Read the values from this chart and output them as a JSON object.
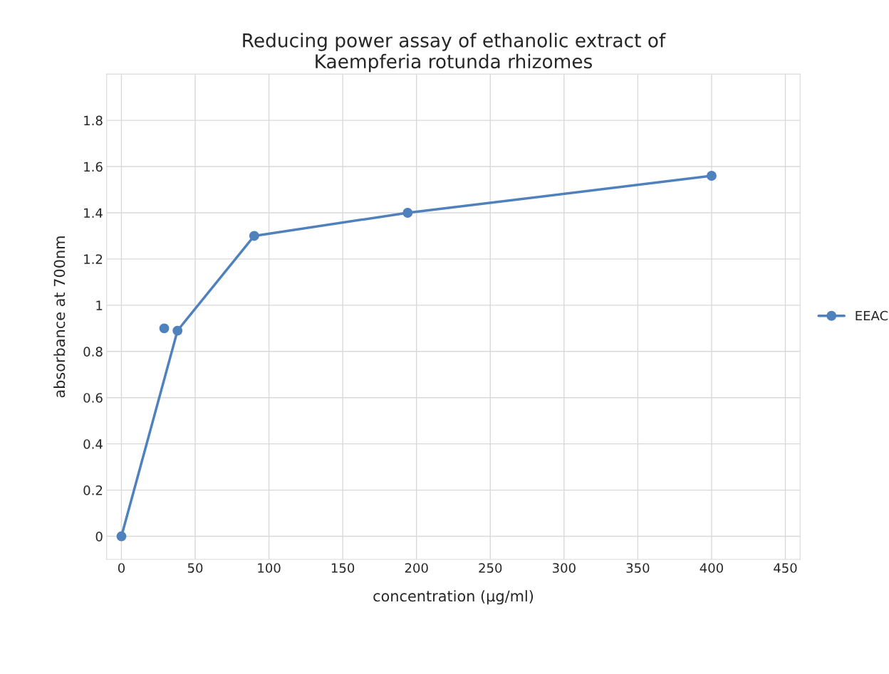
{
  "chart_data": {
    "type": "line",
    "title": "Reducing power assay of ethanolic extract of\nKaempferia rotunda rhizomes",
    "xlabel": "concentration (µg/ml)",
    "ylabel": "absorbance at 700nm",
    "series": [
      {
        "name": "EEAC",
        "color": "#4f81bd",
        "x": [
          0,
          38,
          90,
          194,
          400
        ],
        "values": [
          0,
          0.89,
          1.3,
          1.4,
          1.56
        ]
      },
      {
        "type": "scatter",
        "color": "#4f81bd",
        "x": [
          29
        ],
        "values": [
          0.9
        ]
      }
    ],
    "xlim": [
      -10,
      460
    ],
    "xticks": [
      0,
      50,
      100,
      150,
      200,
      250,
      300,
      350,
      400,
      450
    ],
    "ylim": [
      -0.1,
      2.0
    ],
    "yticks": [
      0,
      0.2,
      0.4,
      0.6,
      0.8,
      1,
      1.2,
      1.4,
      1.6,
      1.8
    ],
    "grid": true,
    "legend": "right",
    "marker": "circle",
    "line_style": "solid"
  }
}
